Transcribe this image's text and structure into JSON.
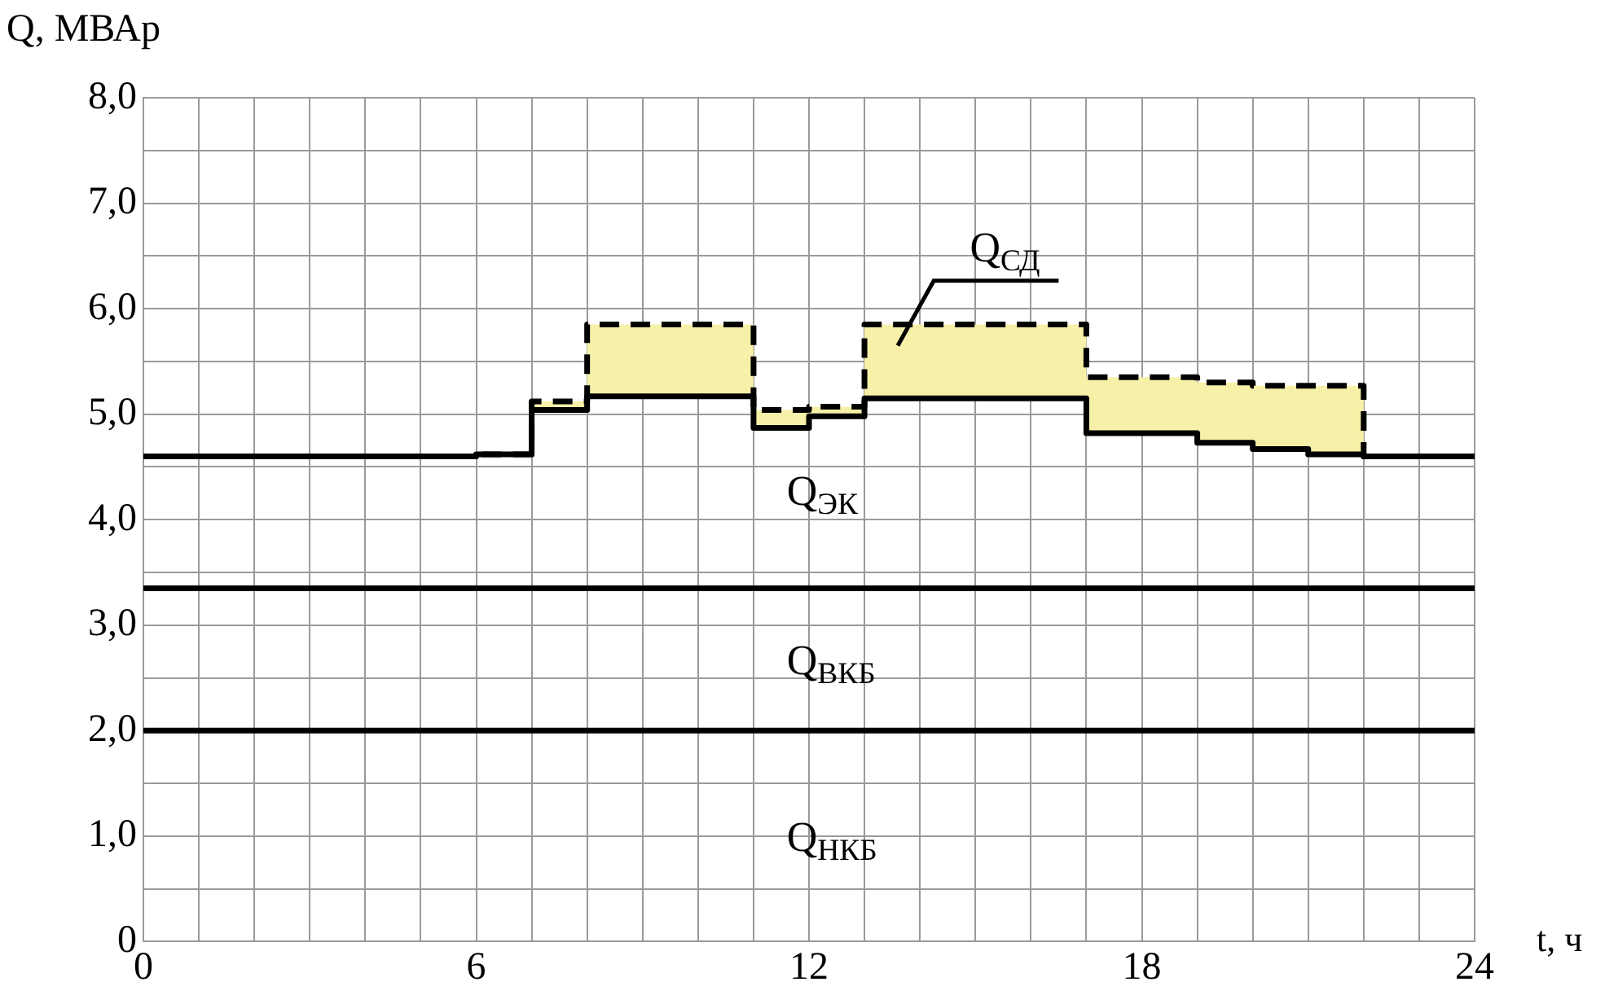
{
  "chart_data": {
    "type": "step",
    "xlabel": "t, ч",
    "ylabel": "Q, МВАр",
    "x": [
      0,
      6,
      7,
      8,
      11,
      12,
      13,
      17,
      19,
      20,
      21,
      22,
      24
    ],
    "series": [
      {
        "name": "Q$_{НКБ}$",
        "color": "#000000",
        "values": [
          2.0,
          2.0,
          2.0,
          2.0,
          2.0,
          2.0,
          2.0,
          2.0,
          2.0,
          2.0,
          2.0,
          2.0,
          2.0
        ]
      },
      {
        "name": "Q$_{ВКБ}$",
        "color": "#000000",
        "values": [
          3.35,
          3.35,
          3.35,
          3.35,
          3.35,
          3.35,
          3.35,
          3.35,
          3.35,
          3.35,
          3.35,
          3.35,
          3.35
        ]
      },
      {
        "name": "Q$_{ЭК}$",
        "color": "#000000",
        "values": [
          4.6,
          4.62,
          5.04,
          5.17,
          4.87,
          4.98,
          5.15,
          4.82,
          4.73,
          4.67,
          4.62,
          4.6,
          4.6
        ]
      },
      {
        "name": "Q$_{СД}$",
        "type": "area",
        "color": "#f7f0a8",
        "line_style": "dashed",
        "values": [
          4.6,
          4.62,
          5.12,
          5.85,
          5.04,
          5.07,
          5.85,
          5.35,
          5.3,
          5.27,
          5.27,
          4.6,
          4.6
        ]
      }
    ],
    "xlim": [
      0,
      24
    ],
    "xticks": [
      0,
      {
        "value": 1,
        "label": null
      },
      {
        "value": 2,
        "label": null
      },
      {
        "value": 3,
        "label": null
      },
      {
        "value": 4,
        "label": null
      },
      {
        "value": 5,
        "label": null
      },
      6,
      {
        "value": 7,
        "label": null
      },
      {
        "value": 8,
        "label": null
      },
      {
        "value": 9,
        "label": null
      },
      {
        "value": 10,
        "label": null
      },
      {
        "value": 11,
        "label": null
      },
      12,
      {
        "value": 13,
        "label": null
      },
      {
        "value": 14,
        "label": null
      },
      {
        "value": 15,
        "label": null
      },
      {
        "value": 16,
        "label": null
      },
      {
        "value": 17,
        "label": null
      },
      18,
      {
        "value": 19,
        "label": null
      },
      {
        "value": 20,
        "label": null
      },
      {
        "value": 21,
        "label": null
      },
      {
        "value": 22,
        "label": null
      },
      {
        "value": 23,
        "label": null
      },
      24
    ],
    "ylim": [
      0,
      8
    ],
    "yticks": [
      0,
      {
        "value": 0.5,
        "label": null
      },
      {
        "value": 1,
        "label": "1,0"
      },
      {
        "value": 1.5,
        "label": null
      },
      {
        "value": 2,
        "label": "2,0"
      },
      {
        "value": 2.5,
        "label": null
      },
      {
        "value": 3,
        "label": "3,0"
      },
      {
        "value": 3.5,
        "label": null
      },
      {
        "value": 4,
        "label": "4,0"
      },
      {
        "value": 4.5,
        "label": null
      },
      {
        "value": 5,
        "label": "5,0"
      },
      {
        "value": 5.5,
        "label": null
      },
      {
        "value": 6,
        "label": "6,0"
      },
      {
        "value": 6.5,
        "label": null
      },
      {
        "value": 7,
        "label": "7,0"
      },
      {
        "value": 7.5,
        "label": null
      },
      {
        "value": 8,
        "label": "8,0"
      }
    ],
    "grid": true,
    "legend": false,
    "marker": "none",
    "line_style": "solid"
  }
}
